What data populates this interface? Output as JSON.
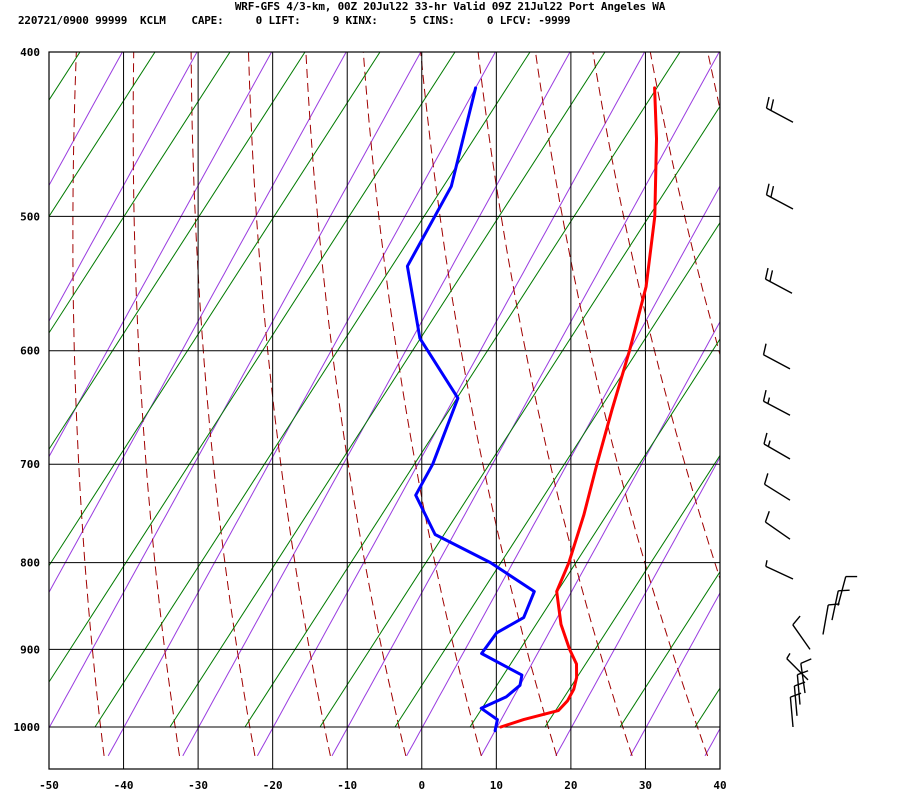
{
  "header": {
    "title": "WRF-GFS 4/3-km, 00Z 20Jul22 33-hr Valid 09Z 21Jul22 Port Angeles WA",
    "stats": "220721/0900 99999  KCLM    CAPE:     0 LIFT:     9 KINX:     5 CINS:     0 LFCV: -9999"
  },
  "colors": {
    "temperature": "#ff0000",
    "dewpoint": "#0000ff",
    "isotherm": "#9a3de0",
    "dry_adiabat": "#a00000",
    "moist_adiabat": "#007a00",
    "grid": "#000000",
    "wind_barb": "#000000"
  },
  "chart_data": {
    "type": "line",
    "title": "",
    "xlabel": "",
    "ylabel": "",
    "x_scale": "skew-T",
    "y_scale": "log-pressure (hPa)",
    "xlim": [
      -50,
      40
    ],
    "ylim": [
      1040,
      400
    ],
    "x_ticks": [
      "-50",
      "-40",
      "-30",
      "-20",
      "-10",
      "0",
      "10",
      "20",
      "30",
      "40"
    ],
    "y_ticks": [
      "400",
      "500",
      "600",
      "700",
      "800",
      "900",
      "1000"
    ],
    "grid": true,
    "series": [
      {
        "id": "temperature",
        "points": [
          {
            "p": 1000,
            "t": 10.5
          },
          {
            "p": 990,
            "t": 13
          },
          {
            "p": 978,
            "t": 17
          },
          {
            "p": 965,
            "t": 17.5
          },
          {
            "p": 950,
            "t": 17.5
          },
          {
            "p": 935,
            "t": 17
          },
          {
            "p": 918,
            "t": 16
          },
          {
            "p": 900,
            "t": 14
          },
          {
            "p": 870,
            "t": 11
          },
          {
            "p": 832,
            "t": 8
          },
          {
            "p": 800,
            "t": 7.5
          },
          {
            "p": 750,
            "t": 6
          },
          {
            "p": 700,
            "t": 4
          },
          {
            "p": 650,
            "t": 2
          },
          {
            "p": 600,
            "t": 0
          },
          {
            "p": 550,
            "t": -2.5
          },
          {
            "p": 500,
            "t": -6.5
          },
          {
            "p": 450,
            "t": -12
          },
          {
            "p": 420,
            "t": -16
          }
        ]
      },
      {
        "id": "dewpoint",
        "points": [
          {
            "p": 1005,
            "t": 10
          },
          {
            "p": 990,
            "t": 9.5
          },
          {
            "p": 975,
            "t": 6.5
          },
          {
            "p": 960,
            "t": 9
          },
          {
            "p": 945,
            "t": 10
          },
          {
            "p": 932,
            "t": 9.5
          },
          {
            "p": 905,
            "t": 2.5
          },
          {
            "p": 880,
            "t": 3
          },
          {
            "p": 862,
            "t": 5.5
          },
          {
            "p": 832,
            "t": 5
          },
          {
            "p": 800,
            "t": -3
          },
          {
            "p": 770,
            "t": -12.5
          },
          {
            "p": 730,
            "t": -18
          },
          {
            "p": 700,
            "t": -18
          },
          {
            "p": 640,
            "t": -19.5
          },
          {
            "p": 590,
            "t": -29
          },
          {
            "p": 535,
            "t": -36
          },
          {
            "p": 480,
            "t": -36
          },
          {
            "p": 420,
            "t": -40
          }
        ]
      }
    ],
    "wind_barbs": [
      {
        "p": 1000,
        "kt": 10
      },
      {
        "p": 985,
        "kt": 10
      },
      {
        "p": 970,
        "kt": 10
      },
      {
        "p": 955,
        "kt": 10
      },
      {
        "p": 938,
        "kt": 5
      },
      {
        "p": 900,
        "kt": 10
      },
      {
        "p": 882,
        "kt": 10
      },
      {
        "p": 865,
        "kt": 10
      },
      {
        "p": 848,
        "kt": 10
      },
      {
        "p": 818,
        "kt": 5
      },
      {
        "p": 775,
        "kt": 10
      },
      {
        "p": 735,
        "kt": 10
      },
      {
        "p": 695,
        "kt": 15
      },
      {
        "p": 655,
        "kt": 15
      },
      {
        "p": 615,
        "kt": 10
      },
      {
        "p": 555,
        "kt": 20
      },
      {
        "p": 495,
        "kt": 20
      },
      {
        "p": 440,
        "kt": 20
      }
    ]
  }
}
